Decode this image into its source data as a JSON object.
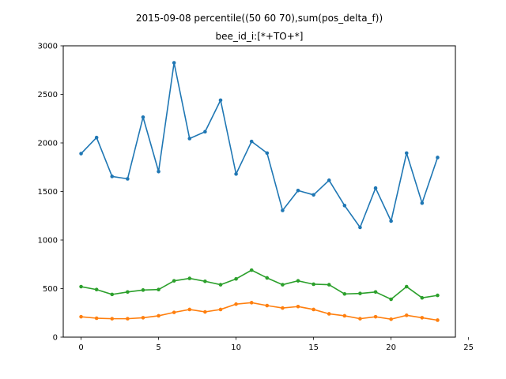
{
  "chart_data": {
    "type": "line",
    "title_lines": [
      "2015-09-08 percentile((50 60 70),sum(pos_delta_f))",
      "bee_id_i:[*+TO+*]"
    ],
    "xlabel": "",
    "ylabel": "",
    "xlim": [
      -1.15,
      24.15
    ],
    "ylim": [
      0,
      3000
    ],
    "x_ticks": [
      0,
      5,
      10,
      15,
      20,
      25
    ],
    "y_ticks": [
      0,
      500,
      1000,
      1500,
      2000,
      2500,
      3000
    ],
    "grid": false,
    "legend": "none",
    "marker": "circle",
    "x": [
      0,
      1,
      2,
      3,
      4,
      5,
      6,
      7,
      8,
      9,
      10,
      11,
      12,
      13,
      14,
      15,
      16,
      17,
      18,
      19,
      20,
      21,
      22,
      23
    ],
    "series": [
      {
        "color": "#1f77b4",
        "values": [
          1890,
          2055,
          1655,
          1630,
          2265,
          1705,
          2825,
          2045,
          2115,
          2440,
          1680,
          2015,
          1895,
          1305,
          1510,
          1465,
          1615,
          1355,
          1130,
          1535,
          1195,
          1895,
          1380,
          1850
        ]
      },
      {
        "color": "#ff7f0e",
        "values": [
          210,
          195,
          190,
          190,
          200,
          220,
          255,
          285,
          260,
          285,
          340,
          355,
          325,
          300,
          315,
          285,
          240,
          220,
          190,
          210,
          185,
          225,
          200,
          175
        ]
      },
      {
        "color": "#2ca02c",
        "values": [
          520,
          490,
          440,
          465,
          485,
          490,
          580,
          605,
          575,
          540,
          600,
          690,
          610,
          540,
          580,
          545,
          540,
          445,
          450,
          465,
          390,
          520,
          405,
          430
        ]
      }
    ]
  }
}
